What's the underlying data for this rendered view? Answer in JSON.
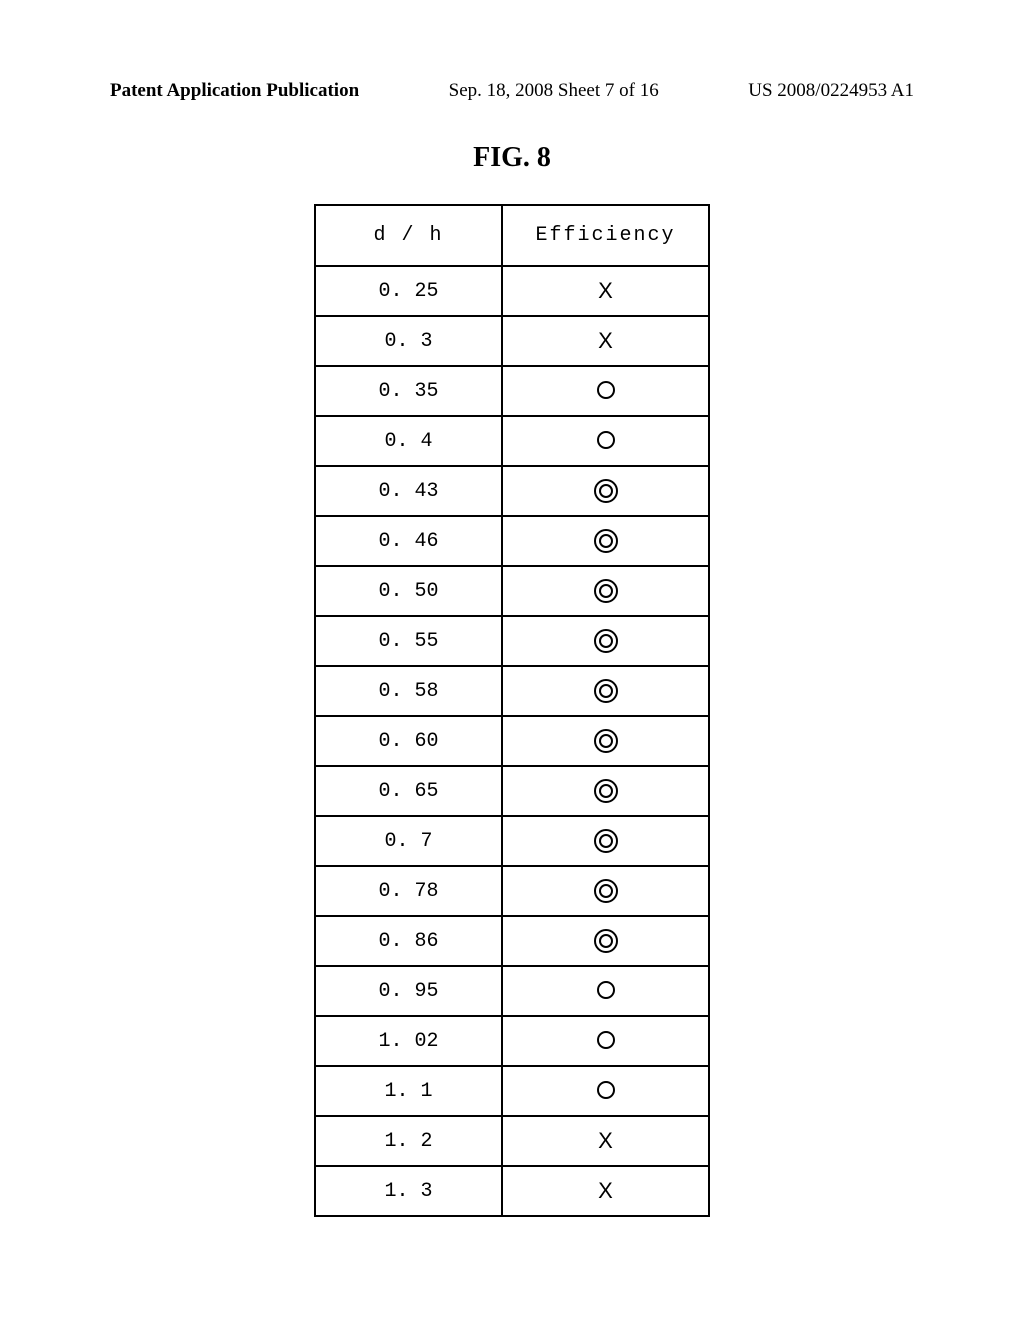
{
  "header": {
    "left": "Patent Application Publication",
    "center": "Sep. 18, 2008 Sheet 7 of 16",
    "right": "US 2008/0224953 A1"
  },
  "figure": {
    "title": "FIG. 8",
    "columns": [
      "d / h",
      "Efficiency"
    ],
    "rows": [
      {
        "dh": "0. 25",
        "sym": "X"
      },
      {
        "dh": "0. 3",
        "sym": "X"
      },
      {
        "dh": "0. 35",
        "sym": "O"
      },
      {
        "dh": "0. 4",
        "sym": "O"
      },
      {
        "dh": "0. 43",
        "sym": "OO"
      },
      {
        "dh": "0. 46",
        "sym": "OO"
      },
      {
        "dh": "0. 50",
        "sym": "OO"
      },
      {
        "dh": "0. 55",
        "sym": "OO"
      },
      {
        "dh": "0. 58",
        "sym": "OO"
      },
      {
        "dh": "0. 60",
        "sym": "OO"
      },
      {
        "dh": "0. 65",
        "sym": "OO"
      },
      {
        "dh": "0. 7",
        "sym": "OO"
      },
      {
        "dh": "0. 78",
        "sym": "OO"
      },
      {
        "dh": "0. 86",
        "sym": "OO"
      },
      {
        "dh": "0. 95",
        "sym": "O"
      },
      {
        "dh": "1. 02",
        "sym": "O"
      },
      {
        "dh": "1. 1",
        "sym": "O"
      },
      {
        "dh": "1. 2",
        "sym": "X"
      },
      {
        "dh": "1. 3",
        "sym": "X"
      }
    ],
    "symbol_styles": {
      "X": {
        "type": "text",
        "glyph": "X",
        "font_size": 22,
        "weight": "normal"
      },
      "O": {
        "type": "circle",
        "outer_r": 8,
        "stroke": "#000",
        "stroke_width": 2,
        "fill": "none"
      },
      "OO": {
        "type": "double-circle",
        "outer_r": 11,
        "inner_r": 6,
        "stroke": "#000",
        "stroke_width": 2,
        "fill": "none"
      }
    },
    "table_style": {
      "border_color": "#000000",
      "border_width": 2,
      "font_family": "Courier New",
      "cell_font_size": 20,
      "header_padding_v": 18,
      "row_padding_v": 10,
      "col_left_width": 165,
      "col_right_width": 185,
      "background": "#ffffff"
    }
  }
}
